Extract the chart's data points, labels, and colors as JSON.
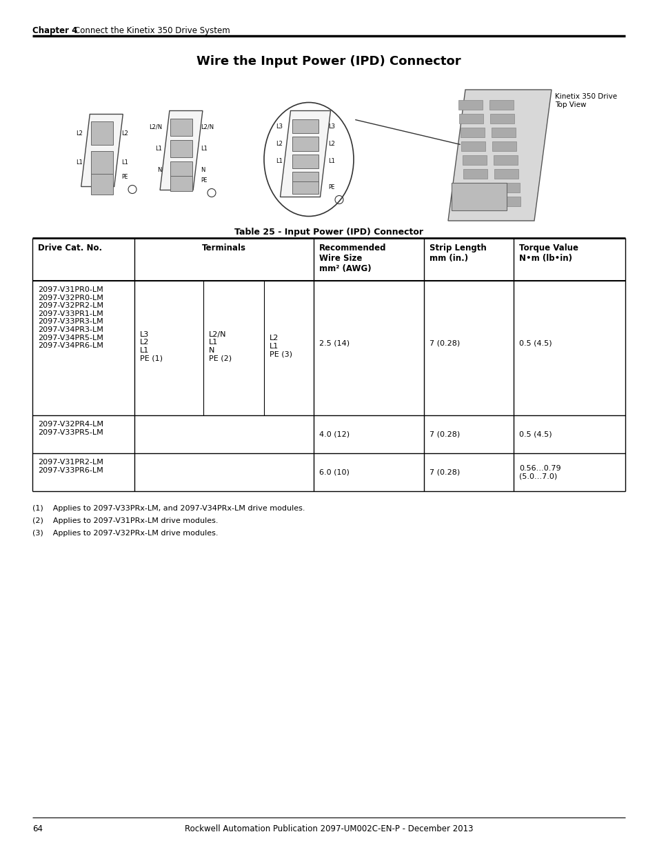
{
  "page_title": "Wire the Input Power (IPD) Connector",
  "chapter_header": "Chapter 4",
  "chapter_subheader": "Connect the Kinetix 350 Drive System",
  "table_title": "Table 25 - Input Power (IPD) Connector",
  "row1_cats": "2097-V31PR0-LM\n2097-V32PR0-LM\n2097-V32PR2-LM\n2097-V33PR1-LM\n2097-V33PR3-LM\n2097-V34PR3-LM\n2097-V34PR5-LM\n2097-V34PR6-LM",
  "row1_term1": "L3\nL2\nL1\nPE (1)",
  "row1_term2": "L2/N\nL1\nN\nPE (2)",
  "row1_term3": "L2\nL1\nPE (3)",
  "row1_wire": "2.5 (14)",
  "row1_strip": "7 (0.28)",
  "row1_torque": "0.5 (4.5)",
  "row2_cats": "2097-V32PR4-LM\n2097-V33PR5-LM",
  "row2_wire": "4.0 (12)",
  "row2_strip": "7 (0.28)",
  "row2_torque": "0.5 (4.5)",
  "row3_cats": "2097-V31PR2-LM\n2097-V33PR6-LM",
  "row3_wire": "6.0 (10)",
  "row3_strip": "7 (0.28)",
  "row3_torque": "0.56…0.79\n(5.0…7.0)",
  "footnote1": "(1)    Applies to 2097-V33PRx-LM, and 2097-V34PRx-LM drive modules.",
  "footnote2": "(2)    Applies to 2097-V31PRx-LM drive modules.",
  "footnote3": "(3)    Applies to 2097-V32PRx-LM drive modules.",
  "page_num": "64",
  "footer_text": "Rockwell Automation Publication 2097-UM002C-EN-P - December 2013",
  "kinetix_label": "Kinetix 350 Drive\nTop View",
  "bg_color": "#ffffff"
}
